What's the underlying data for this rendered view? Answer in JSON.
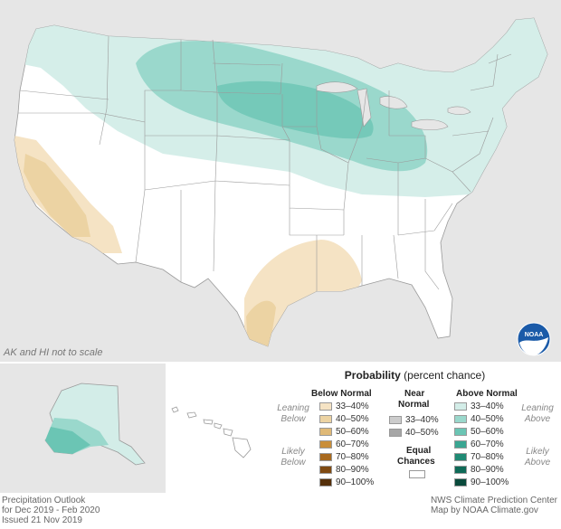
{
  "map": {
    "scale_note": "AK and HI not to scale",
    "logo_text": "NOAA",
    "colors": {
      "background": "#e6e6e6",
      "land": "#ffffff",
      "state_border": "#9a9a9a",
      "above_33_40": "#d3ede8",
      "above_40_50": "#9ad8cc",
      "above_50_60": "#6bc5b4",
      "below_33_40": "#f5e3c4",
      "below_40_50": "#ecd3a3",
      "below_50_60": "#dfb977"
    }
  },
  "legend": {
    "title_bold": "Probability",
    "title_rest": " (percent chance)",
    "below_normal": {
      "header": "Below Normal",
      "leaning_label_1": "Leaning",
      "leaning_label_2": "Below",
      "likely_label_1": "Likely",
      "likely_label_2": "Below",
      "items": [
        {
          "label": "33–40%",
          "color": "#f5e3c4"
        },
        {
          "label": "40–50%",
          "color": "#ecd3a3"
        },
        {
          "label": "50–60%",
          "color": "#dfb977"
        },
        {
          "label": "60–70%",
          "color": "#c98e3a"
        },
        {
          "label": "70–80%",
          "color": "#a96a1e"
        },
        {
          "label": "80–90%",
          "color": "#7f4a12"
        },
        {
          "label": "90–100%",
          "color": "#55300a"
        }
      ]
    },
    "near_normal": {
      "header_1": "Near",
      "header_2": "Normal",
      "items": [
        {
          "label": "33–40%",
          "color": "#cccccc"
        },
        {
          "label": "40–50%",
          "color": "#a6a6a6"
        }
      ]
    },
    "equal_chances": {
      "label_1": "Equal",
      "label_2": "Chances",
      "color": "#ffffff"
    },
    "above_normal": {
      "header": "Above Normal",
      "leaning_label_1": "Leaning",
      "leaning_label_2": "Above",
      "likely_label_1": "Likely",
      "likely_label_2": "Above",
      "items": [
        {
          "label": "33–40%",
          "color": "#d3ede8"
        },
        {
          "label": "40–50%",
          "color": "#9ad8cc"
        },
        {
          "label": "50–60%",
          "color": "#6bc5b4"
        },
        {
          "label": "60–70%",
          "color": "#3aa692"
        },
        {
          "label": "70–80%",
          "color": "#1f8a74"
        },
        {
          "label": "80–90%",
          "color": "#0f6a57"
        },
        {
          "label": "90–100%",
          "color": "#0a4a3c"
        }
      ]
    }
  },
  "footer": {
    "line1": "Precipitation Outlook",
    "line2": "for Dec 2019 - Feb 2020",
    "line3": "Issued 21 Nov 2019",
    "credit1": "NWS Climate Prediction Center",
    "credit2": "Map by NOAA Climate.gov"
  }
}
